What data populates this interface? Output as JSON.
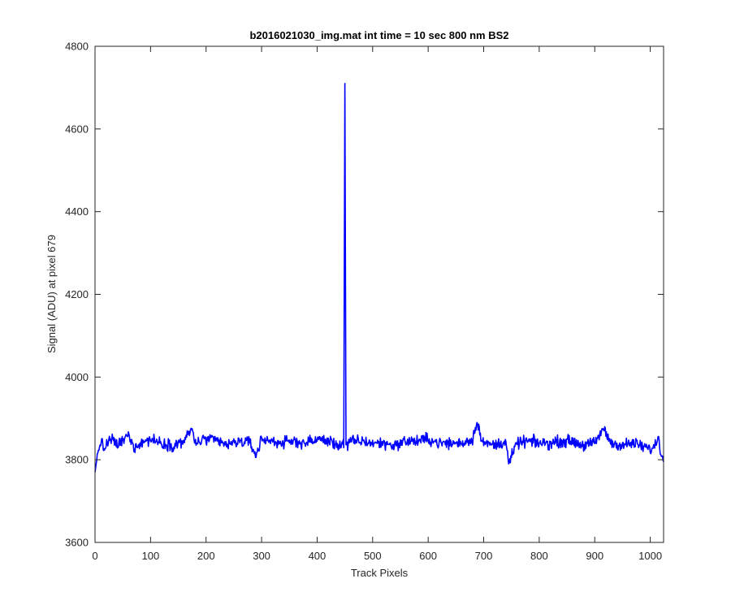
{
  "chart_data": {
    "type": "line",
    "title": "b2016021030_img.mat int time = 10 sec  800 nm BS2",
    "xlabel": "Track Pixels",
    "ylabel": "Signal (ADU) at pixel 679",
    "xlim": [
      0,
      1024
    ],
    "ylim": [
      3600,
      4800
    ],
    "xticks": [
      0,
      100,
      200,
      300,
      400,
      500,
      600,
      700,
      800,
      900,
      1000
    ],
    "yticks": [
      3600,
      3800,
      4000,
      4200,
      4400,
      4600,
      4800
    ],
    "xtick_labels": [
      "0",
      "100",
      "200",
      "300",
      "400",
      "500",
      "600",
      "700",
      "800",
      "900",
      "1000"
    ],
    "ytick_labels": [
      "3600",
      "3800",
      "4000",
      "4200",
      "4400",
      "4600",
      "4800"
    ],
    "grid": false,
    "series": [
      {
        "color": "#0000ff",
        "baseline": 3840,
        "noise_amplitude": 14,
        "x": [
          0,
          2,
          5,
          10,
          16,
          22,
          30,
          40,
          50,
          60,
          70,
          80,
          90,
          100,
          120,
          140,
          160,
          175,
          180,
          200,
          220,
          240,
          260,
          280,
          290,
          300,
          320,
          340,
          360,
          380,
          400,
          420,
          440,
          448,
          450,
          452,
          455,
          460,
          480,
          500,
          520,
          540,
          560,
          580,
          600,
          620,
          640,
          660,
          680,
          688,
          700,
          720,
          740,
          745,
          760,
          780,
          800,
          820,
          840,
          860,
          880,
          900,
          915,
          930,
          950,
          970,
          990,
          1005,
          1015,
          1020,
          1024
        ],
        "y": [
          3770,
          3790,
          3815,
          3845,
          3825,
          3840,
          3850,
          3835,
          3845,
          3860,
          3830,
          3840,
          3845,
          3850,
          3840,
          3835,
          3845,
          3875,
          3840,
          3850,
          3845,
          3835,
          3845,
          3840,
          3810,
          3850,
          3845,
          3840,
          3845,
          3840,
          3850,
          3845,
          3835,
          3840,
          4710,
          3840,
          3830,
          3845,
          3845,
          3840,
          3840,
          3835,
          3845,
          3845,
          3850,
          3840,
          3840,
          3840,
          3850,
          3890,
          3840,
          3835,
          3845,
          3790,
          3840,
          3845,
          3840,
          3840,
          3845,
          3845,
          3835,
          3840,
          3875,
          3840,
          3835,
          3840,
          3830,
          3825,
          3855,
          3810,
          3795
        ]
      }
    ]
  }
}
